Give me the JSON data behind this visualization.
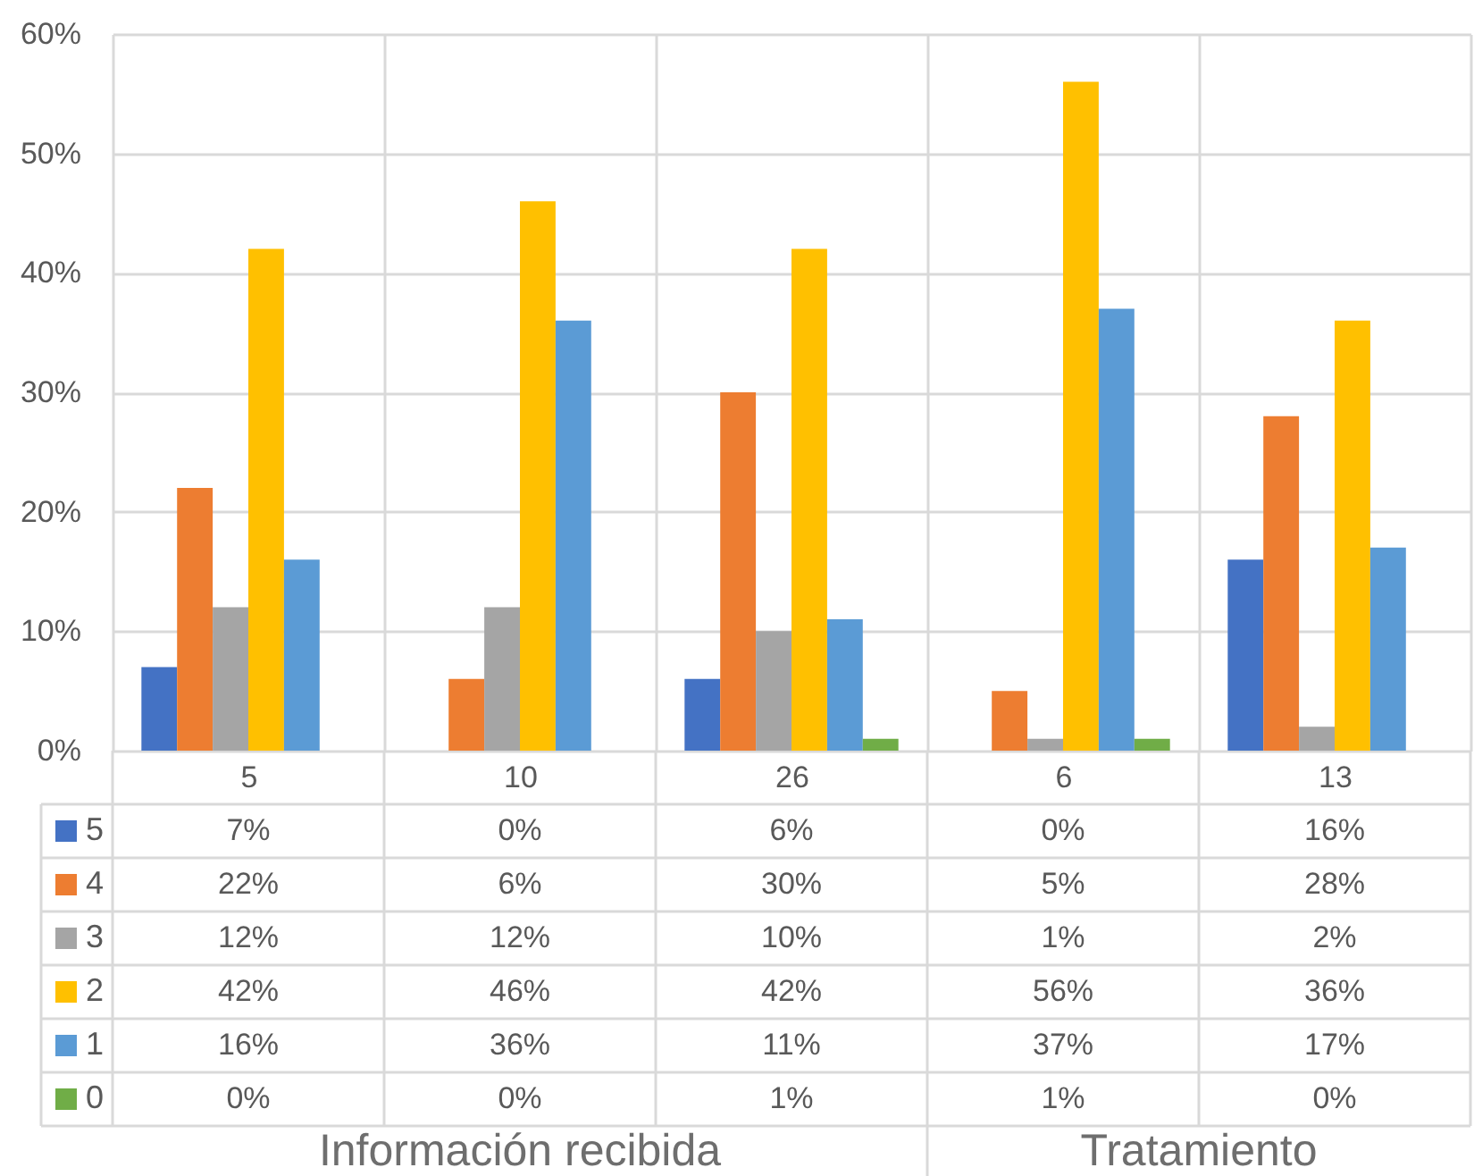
{
  "chart_data": {
    "type": "bar",
    "categories": [
      "5",
      "10",
      "26",
      "6",
      "13"
    ],
    "series": [
      {
        "name": "5",
        "color": "#4472c4",
        "values": [
          7,
          0,
          6,
          0,
          16
        ],
        "value_labels": [
          "7%",
          "0%",
          "6%",
          "0%",
          "16%"
        ]
      },
      {
        "name": "4",
        "color": "#ed7d31",
        "values": [
          22,
          6,
          30,
          5,
          28
        ],
        "value_labels": [
          "22%",
          "6%",
          "30%",
          "5%",
          "28%"
        ]
      },
      {
        "name": "3",
        "color": "#a5a5a5",
        "values": [
          12,
          12,
          10,
          1,
          2
        ],
        "value_labels": [
          "12%",
          "12%",
          "10%",
          "1%",
          "2%"
        ]
      },
      {
        "name": "2",
        "color": "#ffc000",
        "values": [
          42,
          46,
          42,
          56,
          36
        ],
        "value_labels": [
          "42%",
          "46%",
          "42%",
          "56%",
          "36%"
        ]
      },
      {
        "name": "1",
        "color": "#5b9bd5",
        "values": [
          16,
          36,
          11,
          37,
          17
        ],
        "value_labels": [
          "16%",
          "36%",
          "11%",
          "37%",
          "17%"
        ]
      },
      {
        "name": "0",
        "color": "#70ad47",
        "values": [
          0,
          0,
          1,
          1,
          0
        ],
        "value_labels": [
          "0%",
          "0%",
          "1%",
          "1%",
          "0%"
        ]
      }
    ],
    "ylim": [
      0,
      60
    ],
    "yticks": [
      {
        "value": 0,
        "label": "0%"
      },
      {
        "value": 10,
        "label": "10%"
      },
      {
        "value": 20,
        "label": "20%"
      },
      {
        "value": 30,
        "label": "30%"
      },
      {
        "value": 40,
        "label": "40%"
      },
      {
        "value": 50,
        "label": "50%"
      },
      {
        "value": 60,
        "label": "60%"
      }
    ],
    "grid": true,
    "legend": "bottom left",
    "annotations": [
      "Información recibida",
      "Tratamiento"
    ]
  }
}
